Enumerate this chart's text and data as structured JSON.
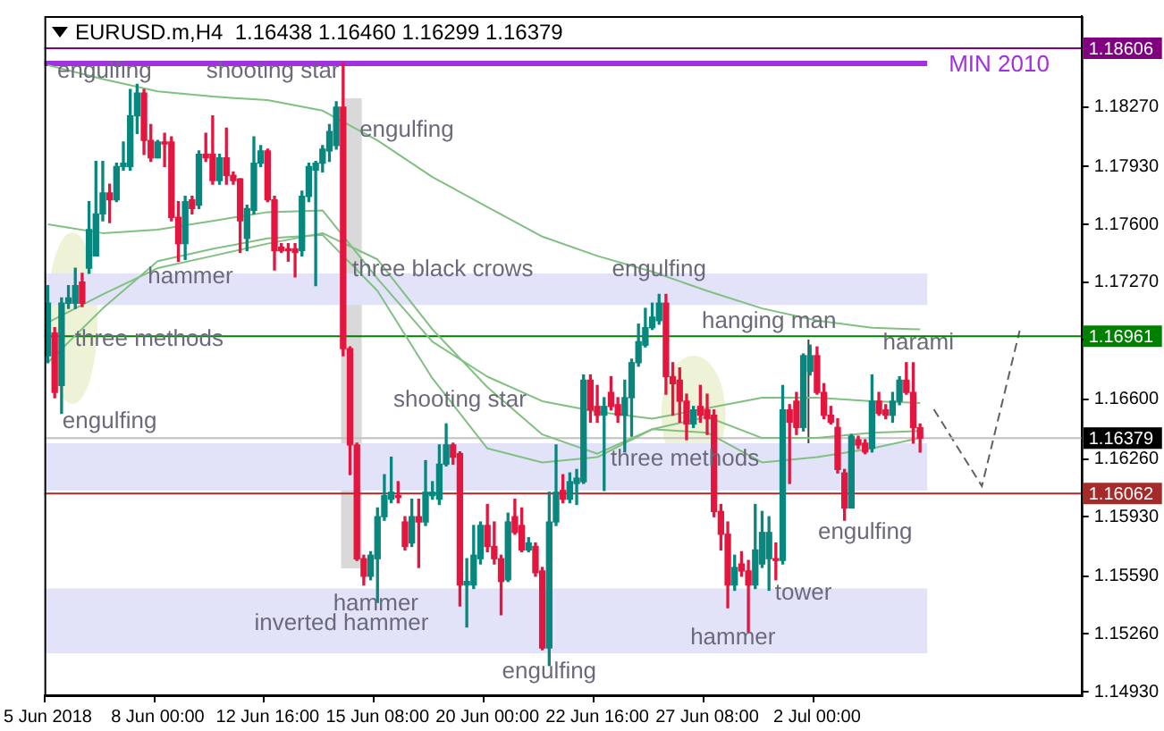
{
  "chart_data": {
    "type": "candlestick",
    "title": "EURUSD.m,H4  1.16438 1.16460 1.16299 1.16379",
    "categories": [
      "5 Jun 2018",
      null,
      null,
      null,
      null,
      null,
      null,
      null,
      null,
      null,
      null,
      null,
      null,
      null,
      null,
      null,
      "8 Jun 00:00",
      null,
      null,
      null,
      null,
      null,
      null,
      null,
      null,
      null,
      null,
      null,
      null,
      null,
      null,
      null,
      "12 Jun 16:00",
      null,
      null,
      null,
      null,
      null,
      null,
      null,
      null,
      null,
      null,
      null,
      null,
      null,
      null,
      null,
      "15 Jun 08:00",
      null,
      null,
      null,
      null,
      null,
      null,
      null,
      null,
      null,
      null,
      null,
      null,
      null,
      null,
      null,
      "20 Jun 00:00",
      null,
      null,
      null,
      null,
      null,
      null,
      null,
      null,
      null,
      null,
      null,
      null,
      null,
      null,
      null,
      "22 Jun 16:00",
      null,
      null,
      null,
      null,
      null,
      null,
      null,
      null,
      null,
      null,
      null,
      null,
      null,
      null,
      null,
      "27 Jun 08:00",
      null,
      null,
      null,
      null,
      null,
      null,
      null,
      null,
      null,
      null,
      null,
      null,
      null,
      null,
      null,
      "2 Jul 00:00",
      null,
      null,
      null,
      null,
      null,
      null,
      null,
      null,
      null,
      null,
      null,
      null,
      null,
      null,
      null,
      null,
      null,
      null,
      null,
      null,
      null,
      null,
      null,
      null,
      null,
      null,
      null,
      null,
      null,
      null,
      null,
      null,
      null,
      null,
      null,
      null,
      null,
      null
    ],
    "ohlc": [
      [
        1.1685,
        1.1725,
        1.1681,
        1.1715
      ],
      [
        1.1698,
        1.1701,
        1.1661,
        1.1664
      ],
      [
        1.1668,
        1.1718,
        1.1652,
        1.1715
      ],
      [
        1.1715,
        1.1725,
        1.1712,
        1.1718
      ],
      [
        1.1715,
        1.1735,
        1.1712,
        1.1725
      ],
      [
        1.1727,
        1.1732,
        1.1713,
        1.1715
      ],
      [
        1.1735,
        1.1773,
        1.1732,
        1.1757
      ],
      [
        1.1742,
        1.1796,
        1.1742,
        1.1766
      ],
      [
        1.1766,
        1.1796,
        1.1762,
        1.1778
      ],
      [
        1.1778,
        1.1783,
        1.1761,
        1.1774
      ],
      [
        1.1774,
        1.1795,
        1.1773,
        1.1793
      ],
      [
        1.1793,
        1.1807,
        1.1791,
        1.1795
      ],
      [
        1.1793,
        1.1837,
        1.1791,
        1.1822
      ],
      [
        1.1822,
        1.184,
        1.1812,
        1.1835
      ],
      [
        1.1835,
        1.1837,
        1.18,
        1.1808
      ],
      [
        1.1808,
        1.1817,
        1.1796,
        1.1798
      ],
      [
        1.1798,
        1.1808,
        1.1798,
        1.1807
      ],
      [
        1.1807,
        1.1812,
        1.1793,
        1.1806
      ],
      [
        1.1807,
        1.181,
        1.1762,
        1.1764
      ],
      [
        1.1764,
        1.1773,
        1.1739,
        1.1749
      ],
      [
        1.1749,
        1.1776,
        1.174,
        1.1773
      ],
      [
        1.1774,
        1.1776,
        1.1766,
        1.1769
      ],
      [
        1.1771,
        1.1802,
        1.1769,
        1.18
      ],
      [
        1.18,
        1.1812,
        1.1796,
        1.1798
      ],
      [
        1.18,
        1.1822,
        1.1783,
        1.1785
      ],
      [
        1.1785,
        1.18,
        1.1783,
        1.1798
      ],
      [
        1.1798,
        1.1815,
        1.1783,
        1.1788
      ],
      [
        1.1788,
        1.179,
        1.1783,
        1.1785
      ],
      [
        1.1786,
        1.1786,
        1.1744,
        1.1762
      ],
      [
        1.1752,
        1.1771,
        1.1745,
        1.1769
      ],
      [
        1.1768,
        1.181,
        1.1766,
        1.1795
      ],
      [
        1.1795,
        1.1805,
        1.1793,
        1.1802
      ],
      [
        1.1802,
        1.1803,
        1.1773,
        1.1774
      ],
      [
        1.1774,
        1.1776,
        1.1734,
        1.1745
      ],
      [
        1.1747,
        1.1749,
        1.1744,
        1.1745
      ],
      [
        1.1746,
        1.1749,
        1.1739,
        1.1745
      ],
      [
        1.1746,
        1.1749,
        1.173,
        1.1744
      ],
      [
        1.1745,
        1.1779,
        1.1742,
        1.1776
      ],
      [
        1.1776,
        1.1795,
        1.1773,
        1.1793
      ],
      [
        1.1791,
        1.1796,
        1.1725,
        1.1795
      ],
      [
        1.1795,
        1.1805,
        1.179,
        1.1803
      ],
      [
        1.1802,
        1.1817,
        1.1796,
        1.1813
      ],
      [
        1.1805,
        1.183,
        1.1803,
        1.1827
      ],
      [
        1.1827,
        1.1852,
        1.1685,
        1.1689
      ],
      [
        1.1689,
        1.169,
        1.1617,
        1.1634
      ],
      [
        1.1634,
        1.1635,
        1.1568,
        1.1569
      ],
      [
        1.1569,
        1.1571,
        1.1554,
        1.1559
      ],
      [
        1.1559,
        1.1573,
        1.1557,
        1.1571
      ],
      [
        1.1569,
        1.1598,
        1.1544,
        1.1593
      ],
      [
        1.1593,
        1.1617,
        1.1591,
        1.1605
      ],
      [
        1.1603,
        1.1627,
        1.1601,
        1.1607
      ],
      [
        1.1605,
        1.1613,
        1.1601,
        1.1604
      ],
      [
        1.159,
        1.1593,
        1.1574,
        1.1576
      ],
      [
        1.1578,
        1.1603,
        1.1576,
        1.1593
      ],
      [
        1.1593,
        1.1603,
        1.1564,
        1.159
      ],
      [
        1.159,
        1.1625,
        1.1588,
        1.1607
      ],
      [
        1.1605,
        1.1613,
        1.1603,
        1.1607
      ],
      [
        1.1603,
        1.1634,
        1.16,
        1.1623
      ],
      [
        1.1623,
        1.1646,
        1.1622,
        1.1634
      ],
      [
        1.1634,
        1.1635,
        1.1623,
        1.1627
      ],
      [
        1.1629,
        1.163,
        1.1542,
        1.1554
      ],
      [
        1.1554,
        1.1569,
        1.153,
        1.1556
      ],
      [
        1.1554,
        1.1588,
        1.1552,
        1.1571
      ],
      [
        1.1569,
        1.159,
        1.1566,
        1.1588
      ],
      [
        1.1588,
        1.16,
        1.1573,
        1.1576
      ],
      [
        1.1576,
        1.159,
        1.1566,
        1.1569
      ],
      [
        1.1569,
        1.1571,
        1.1537,
        1.1556
      ],
      [
        1.1557,
        1.1595,
        1.1556,
        1.159
      ],
      [
        1.1593,
        1.1603,
        1.1583,
        1.1584
      ],
      [
        1.1588,
        1.1598,
        1.1573,
        1.1574
      ],
      [
        1.1574,
        1.1581,
        1.1573,
        1.1578
      ],
      [
        1.1576,
        1.1578,
        1.1559,
        1.1561
      ],
      [
        1.1562,
        1.1564,
        1.1517,
        1.1518
      ],
      [
        1.1518,
        1.1607,
        1.1508,
        1.159
      ],
      [
        1.159,
        1.1634,
        1.1588,
        1.1607
      ],
      [
        1.1608,
        1.1617,
        1.1601,
        1.1603
      ],
      [
        1.1603,
        1.1618,
        1.1601,
        1.1613
      ],
      [
        1.1612,
        1.162,
        1.16,
        1.1615
      ],
      [
        1.1613,
        1.1674,
        1.1612,
        1.1671
      ],
      [
        1.1671,
        1.1674,
        1.1647,
        1.1654
      ],
      [
        1.1656,
        1.1668,
        1.1647,
        1.1651
      ],
      [
        1.1651,
        1.1661,
        1.1608,
        1.1656
      ],
      [
        1.1664,
        1.1673,
        1.1654,
        1.1656
      ],
      [
        1.1657,
        1.1661,
        1.1647,
        1.1651
      ],
      [
        1.1651,
        1.1671,
        1.163,
        1.1661
      ],
      [
        1.1661,
        1.1683,
        1.1639,
        1.1681
      ],
      [
        1.1681,
        1.1703,
        1.1679,
        1.1693
      ],
      [
        1.1691,
        1.1712,
        1.169,
        1.1701
      ],
      [
        1.1701,
        1.1715,
        1.17,
        1.1707
      ],
      [
        1.1705,
        1.172,
        1.1703,
        1.1715
      ],
      [
        1.1715,
        1.172,
        1.1663,
        1.1673
      ],
      [
        1.1673,
        1.1681,
        1.1651,
        1.1669
      ],
      [
        1.1671,
        1.1678,
        1.1647,
        1.1659
      ],
      [
        1.1659,
        1.1663,
        1.1637,
        1.1646
      ],
      [
        1.1646,
        1.1656,
        1.1644,
        1.1654
      ],
      [
        1.1656,
        1.1668,
        1.1647,
        1.1651
      ],
      [
        1.1654,
        1.1663,
        1.164,
        1.1649
      ],
      [
        1.1651,
        1.1654,
        1.1593,
        1.1596
      ],
      [
        1.1596,
        1.16,
        1.1574,
        1.1583
      ],
      [
        1.1583,
        1.159,
        1.1541,
        1.1554
      ],
      [
        1.1554,
        1.1571,
        1.1551,
        1.1564
      ],
      [
        1.1566,
        1.1573,
        1.1559,
        1.1562
      ],
      [
        1.1562,
        1.1568,
        1.1527,
        1.1554
      ],
      [
        1.1554,
        1.16,
        1.1552,
        1.1574
      ],
      [
        1.1566,
        1.1596,
        1.1564,
        1.1584
      ],
      [
        1.1569,
        1.1593,
        1.1551,
        1.1584
      ],
      [
        1.1569,
        1.1578,
        1.1557,
        1.1568
      ],
      [
        1.1568,
        1.1668,
        1.1566,
        1.1654
      ],
      [
        1.1654,
        1.1657,
        1.1612,
        1.1647
      ],
      [
        1.1659,
        1.1664,
        1.164,
        1.1644
      ],
      [
        1.1644,
        1.1686,
        1.1642,
        1.1685
      ],
      [
        1.1676,
        1.1691,
        1.1674,
        1.1685
      ],
      [
        1.1685,
        1.169,
        1.1663,
        1.1664
      ],
      [
        1.1664,
        1.1669,
        1.1649,
        1.1651
      ],
      [
        1.1651,
        1.1656,
        1.1646,
        1.1647
      ],
      [
        1.1644,
        1.1649,
        1.1618,
        1.162
      ],
      [
        1.1618,
        1.162,
        1.1591,
        1.1598
      ],
      [
        1.1598,
        1.164,
        1.1598,
        1.1639
      ],
      [
        1.1637,
        1.1639,
        1.1632,
        1.1634
      ],
      [
        1.1635,
        1.1637,
        1.1629,
        1.163
      ],
      [
        1.1632,
        1.1674,
        1.163,
        1.1659
      ],
      [
        1.1659,
        1.1664,
        1.1651,
        1.1652
      ],
      [
        1.1654,
        1.1657,
        1.1649,
        1.1651
      ],
      [
        1.1651,
        1.1664,
        1.1647,
        1.1659
      ],
      [
        1.1659,
        1.1673,
        1.1657,
        1.1671
      ],
      [
        1.1671,
        1.1681,
        1.1663,
        1.1664
      ],
      [
        1.1664,
        1.1681,
        1.1635,
        1.1644
      ],
      [
        1.16438,
        1.1646,
        1.16299,
        1.16379
      ],
      null,
      null,
      null,
      null,
      null,
      null,
      null,
      null,
      null,
      null,
      null,
      null,
      null,
      null,
      null,
      null,
      null,
      null,
      null,
      null,
      null,
      null,
      null
    ],
    "colors": [
      "#07877d",
      "#e3163f",
      "#07877d",
      "#07877d",
      "#07877d",
      "#e3163f",
      "#07877d",
      "#07877d",
      "#07877d",
      "#e3163f",
      "#07877d",
      "#07877d",
      "#07877d",
      "#07877d",
      "#e3163f",
      "#e3163f",
      "#07877d",
      "#e3163f",
      "#e3163f",
      "#e3163f",
      "#07877d",
      "#e3163f",
      "#07877d",
      "#e3163f",
      "#e3163f",
      "#07877d",
      "#e3163f",
      "#e3163f",
      "#e3163f",
      "#07877d",
      "#07877d",
      "#07877d",
      "#e3163f",
      "#e3163f",
      "#e3163f",
      "#e3163f",
      "#e3163f",
      "#07877d",
      "#07877d",
      "#07877d",
      "#07877d",
      "#07877d",
      "#07877d",
      "#e3163f",
      "#e3163f",
      "#e3163f",
      "#e3163f",
      "#07877d",
      "#07877d",
      "#07877d",
      "#07877d",
      "#e3163f",
      "#e3163f",
      "#07877d",
      "#e3163f",
      "#07877d",
      "#07877d",
      "#07877d",
      "#07877d",
      "#e3163f",
      "#e3163f",
      "#07877d",
      "#07877d",
      "#07877d",
      "#e3163f",
      "#e3163f",
      "#e3163f",
      "#07877d",
      "#e3163f",
      "#e3163f",
      "#07877d",
      "#e3163f",
      "#e3163f",
      "#07877d",
      "#07877d",
      "#e3163f",
      "#07877d",
      "#07877d",
      "#07877d",
      "#e3163f",
      "#e3163f",
      "#07877d",
      "#e3163f",
      "#e3163f",
      "#07877d",
      "#07877d",
      "#07877d",
      "#07877d",
      "#07877d",
      "#07877d",
      "#e3163f",
      "#e3163f",
      "#e3163f",
      "#e3163f",
      "#07877d",
      "#e3163f",
      "#e3163f",
      "#e3163f",
      "#e3163f",
      "#e3163f",
      "#07877d",
      "#e3163f",
      "#e3163f",
      "#07877d",
      "#07877d",
      "#07877d",
      "#e3163f",
      "#07877d",
      "#e3163f",
      "#e3163f",
      "#07877d",
      "#07877d",
      "#e3163f",
      "#e3163f",
      "#e3163f",
      "#e3163f",
      "#e3163f",
      "#07877d",
      "#e3163f",
      "#e3163f",
      "#07877d",
      "#e3163f",
      "#e3163f",
      "#07877d",
      "#07877d",
      "#e3163f",
      "#e3163f",
      "#e3163f",
      null,
      null,
      null,
      null,
      null,
      null,
      null,
      null,
      null,
      null,
      null,
      null,
      null,
      null,
      null,
      null,
      null,
      null,
      null,
      null,
      null,
      null,
      null
    ],
    "series": [
      {
        "type": "line",
        "color": "#80c080",
        "values": [
          1.1851,
          null,
          null,
          null,
          null,
          null,
          null,
          null,
          1.1843,
          null,
          null,
          null,
          null,
          null,
          null,
          null,
          1.1836,
          null,
          null,
          null,
          null,
          null,
          null,
          null,
          1.1833,
          null,
          null,
          null,
          null,
          null,
          null,
          null,
          1.1831,
          null,
          null,
          null,
          null,
          null,
          null,
          null,
          1.1825,
          null,
          null,
          null,
          null,
          null,
          null,
          null,
          1.1808,
          null,
          null,
          null,
          null,
          null,
          null,
          null,
          1.1787,
          null,
          null,
          null,
          null,
          null,
          null,
          null,
          1.177,
          null,
          null,
          null,
          null,
          null,
          null,
          null,
          1.1753,
          null,
          null,
          null,
          null,
          null,
          null,
          null,
          1.1742,
          null,
          null,
          null,
          null,
          null,
          null,
          null,
          1.1733,
          null,
          null,
          null,
          null,
          null,
          null,
          null,
          1.1722,
          null,
          null,
          null,
          null,
          null,
          null,
          null,
          1.1712,
          null,
          null,
          null,
          null,
          null,
          null,
          null,
          1.1705,
          null,
          null,
          null,
          null,
          null,
          null,
          null,
          1.1701,
          null,
          null,
          null,
          null,
          null,
          null,
          1.17,
          null,
          null,
          null,
          null,
          null,
          null,
          null,
          null,
          null,
          null,
          null,
          null,
          null,
          null,
          null,
          null,
          null,
          null,
          null,
          null,
          null,
          null,
          null
        ]
      },
      {
        "type": "line",
        "color": "#80c080",
        "values": [
          1.176,
          null,
          null,
          null,
          null,
          null,
          null,
          null,
          1.1755,
          null,
          null,
          null,
          null,
          null,
          null,
          null,
          1.1757,
          null,
          null,
          null,
          null,
          null,
          null,
          null,
          1.1762,
          null,
          null,
          null,
          null,
          null,
          null,
          null,
          1.1767,
          null,
          null,
          null,
          null,
          null,
          null,
          null,
          1.1768,
          null,
          null,
          null,
          null,
          null,
          null,
          null,
          1.1729,
          null,
          null,
          null,
          null,
          null,
          null,
          null,
          1.1693,
          null,
          null,
          null,
          null,
          null,
          null,
          null,
          1.1673,
          null,
          null,
          null,
          null,
          null,
          null,
          null,
          1.1659,
          null,
          null,
          null,
          null,
          null,
          null,
          null,
          1.1653,
          null,
          null,
          null,
          null,
          null,
          null,
          null,
          1.1649,
          null,
          null,
          null,
          null,
          null,
          null,
          null,
          1.1655,
          null,
          null,
          null,
          null,
          null,
          null,
          null,
          1.1661,
          null,
          null,
          null,
          null,
          null,
          null,
          null,
          1.1661,
          null,
          null,
          null,
          null,
          null,
          null,
          null,
          1.1659,
          null,
          null,
          null,
          null,
          null,
          null,
          1.1658,
          null,
          null,
          null,
          null,
          null,
          null,
          null,
          null,
          null,
          null,
          null,
          null,
          null,
          null,
          null,
          null,
          null,
          null,
          null,
          null,
          null,
          null,
          null
        ]
      },
      {
        "type": "line",
        "color": "#80c080",
        "values": [
          1.1704,
          null,
          null,
          null,
          null,
          null,
          null,
          null,
          1.172,
          null,
          null,
          null,
          null,
          null,
          null,
          null,
          1.1735,
          null,
          null,
          null,
          null,
          null,
          null,
          null,
          1.1742,
          null,
          null,
          null,
          null,
          null,
          null,
          null,
          1.1749,
          null,
          null,
          null,
          null,
          null,
          null,
          null,
          1.1755,
          null,
          null,
          null,
          null,
          null,
          null,
          null,
          1.174,
          null,
          null,
          null,
          null,
          null,
          null,
          null,
          1.17,
          null,
          null,
          null,
          null,
          null,
          null,
          null,
          1.1667,
          null,
          null,
          null,
          null,
          null,
          null,
          null,
          1.164,
          null,
          null,
          null,
          null,
          null,
          null,
          null,
          1.1629,
          null,
          null,
          null,
          null,
          null,
          null,
          null,
          1.1643,
          null,
          null,
          null,
          null,
          null,
          null,
          null,
          1.165,
          null,
          null,
          null,
          null,
          null,
          null,
          null,
          1.1638,
          null,
          null,
          null,
          null,
          null,
          null,
          null,
          1.1638,
          null,
          null,
          null,
          null,
          null,
          null,
          null,
          1.1641,
          null,
          null,
          null,
          null,
          null,
          null,
          1.1642,
          null,
          null,
          null,
          null,
          null,
          null,
          null,
          null,
          null,
          null,
          null,
          null,
          null,
          null,
          null,
          null,
          null,
          null,
          null,
          null,
          null,
          null,
          null
        ]
      },
      {
        "type": "line",
        "color": "#80c080",
        "values": [
          1.1681,
          null,
          null,
          null,
          null,
          null,
          null,
          null,
          1.1712,
          null,
          null,
          null,
          null,
          null,
          null,
          null,
          1.1739,
          null,
          null,
          null,
          null,
          null,
          null,
          null,
          1.1746,
          null,
          null,
          null,
          null,
          null,
          null,
          null,
          1.1752,
          null,
          null,
          null,
          null,
          null,
          null,
          null,
          1.1754,
          null,
          null,
          null,
          null,
          null,
          null,
          null,
          1.1722,
          null,
          null,
          null,
          null,
          null,
          null,
          null,
          1.1672,
          null,
          null,
          null,
          null,
          null,
          null,
          null,
          1.1632,
          null,
          null,
          null,
          null,
          null,
          null,
          null,
          1.1624,
          null,
          null,
          null,
          null,
          null,
          null,
          null,
          1.1627,
          null,
          null,
          null,
          null,
          null,
          null,
          null,
          1.1643,
          null,
          null,
          null,
          null,
          null,
          null,
          null,
          1.1641,
          null,
          null,
          null,
          null,
          null,
          null,
          null,
          1.1624,
          null,
          null,
          null,
          null,
          null,
          null,
          null,
          1.1627,
          null,
          null,
          null,
          null,
          null,
          null,
          null,
          1.1632,
          null,
          null,
          null,
          null,
          null,
          null,
          1.1638,
          null,
          null,
          null,
          null,
          null,
          null,
          null,
          null,
          null,
          null,
          null,
          null,
          null,
          null,
          null,
          null,
          null,
          null,
          null,
          null,
          null,
          null,
          null
        ]
      }
    ],
    "ylim": [
      1.1491,
      1.1879
    ],
    "yticks": [
      {
        "value": 1.1493,
        "label": "1.14930"
      },
      {
        "value": 1.1526,
        "label": "1.15260"
      },
      {
        "value": 1.1559,
        "label": "1.15590"
      },
      {
        "value": 1.1593,
        "label": "1.15930"
      },
      {
        "value": 1.1626,
        "label": "1.16260"
      },
      {
        "value": 1.166,
        "label": "1.16600"
      },
      {
        "value": 1.1694,
        "label": null
      },
      {
        "value": 1.1727,
        "label": "1.17270"
      },
      {
        "value": 1.176,
        "label": "1.17600"
      },
      {
        "value": 1.1793,
        "label": "1.17930"
      },
      {
        "value": 1.1827,
        "label": "1.18270"
      }
    ],
    "ref_lines": [
      {
        "axis": "y",
        "value": 1.18606,
        "label": "1.18606",
        "color": "#800080"
      },
      {
        "axis": "y",
        "value": 1.1852,
        "label": "MIN 2010",
        "color": "#a030e0"
      },
      {
        "axis": "y",
        "value": 1.16961,
        "label": "1.16961",
        "color": "#008000"
      },
      {
        "axis": "y",
        "value": 1.16379,
        "label": "1.16379",
        "color": "#c0c0c0"
      },
      {
        "axis": "y",
        "value": 1.16062,
        "label": "1.16062",
        "color": "#a52a2a"
      }
    ],
    "bands": [
      {
        "axis": "y",
        "from": 1.1714,
        "to": 1.1732,
        "color": "#e2e2f8"
      },
      {
        "axis": "y",
        "from": 1.1608,
        "to": 1.1635,
        "color": "#e2e2f8"
      },
      {
        "axis": "y",
        "from": 1.1515,
        "to": 1.1552,
        "color": "#e2e2f8"
      }
    ],
    "annotations": [
      "engulfing",
      "shooting star",
      "engulfing",
      "hammer",
      "three black crows",
      "three methods",
      "engulfing",
      "shooting star",
      "hammer",
      "inverted hammer",
      "engulfing",
      "engulfing",
      "hanging man",
      "three methods",
      "harami",
      "engulfing",
      "tower",
      "hammer"
    ]
  }
}
